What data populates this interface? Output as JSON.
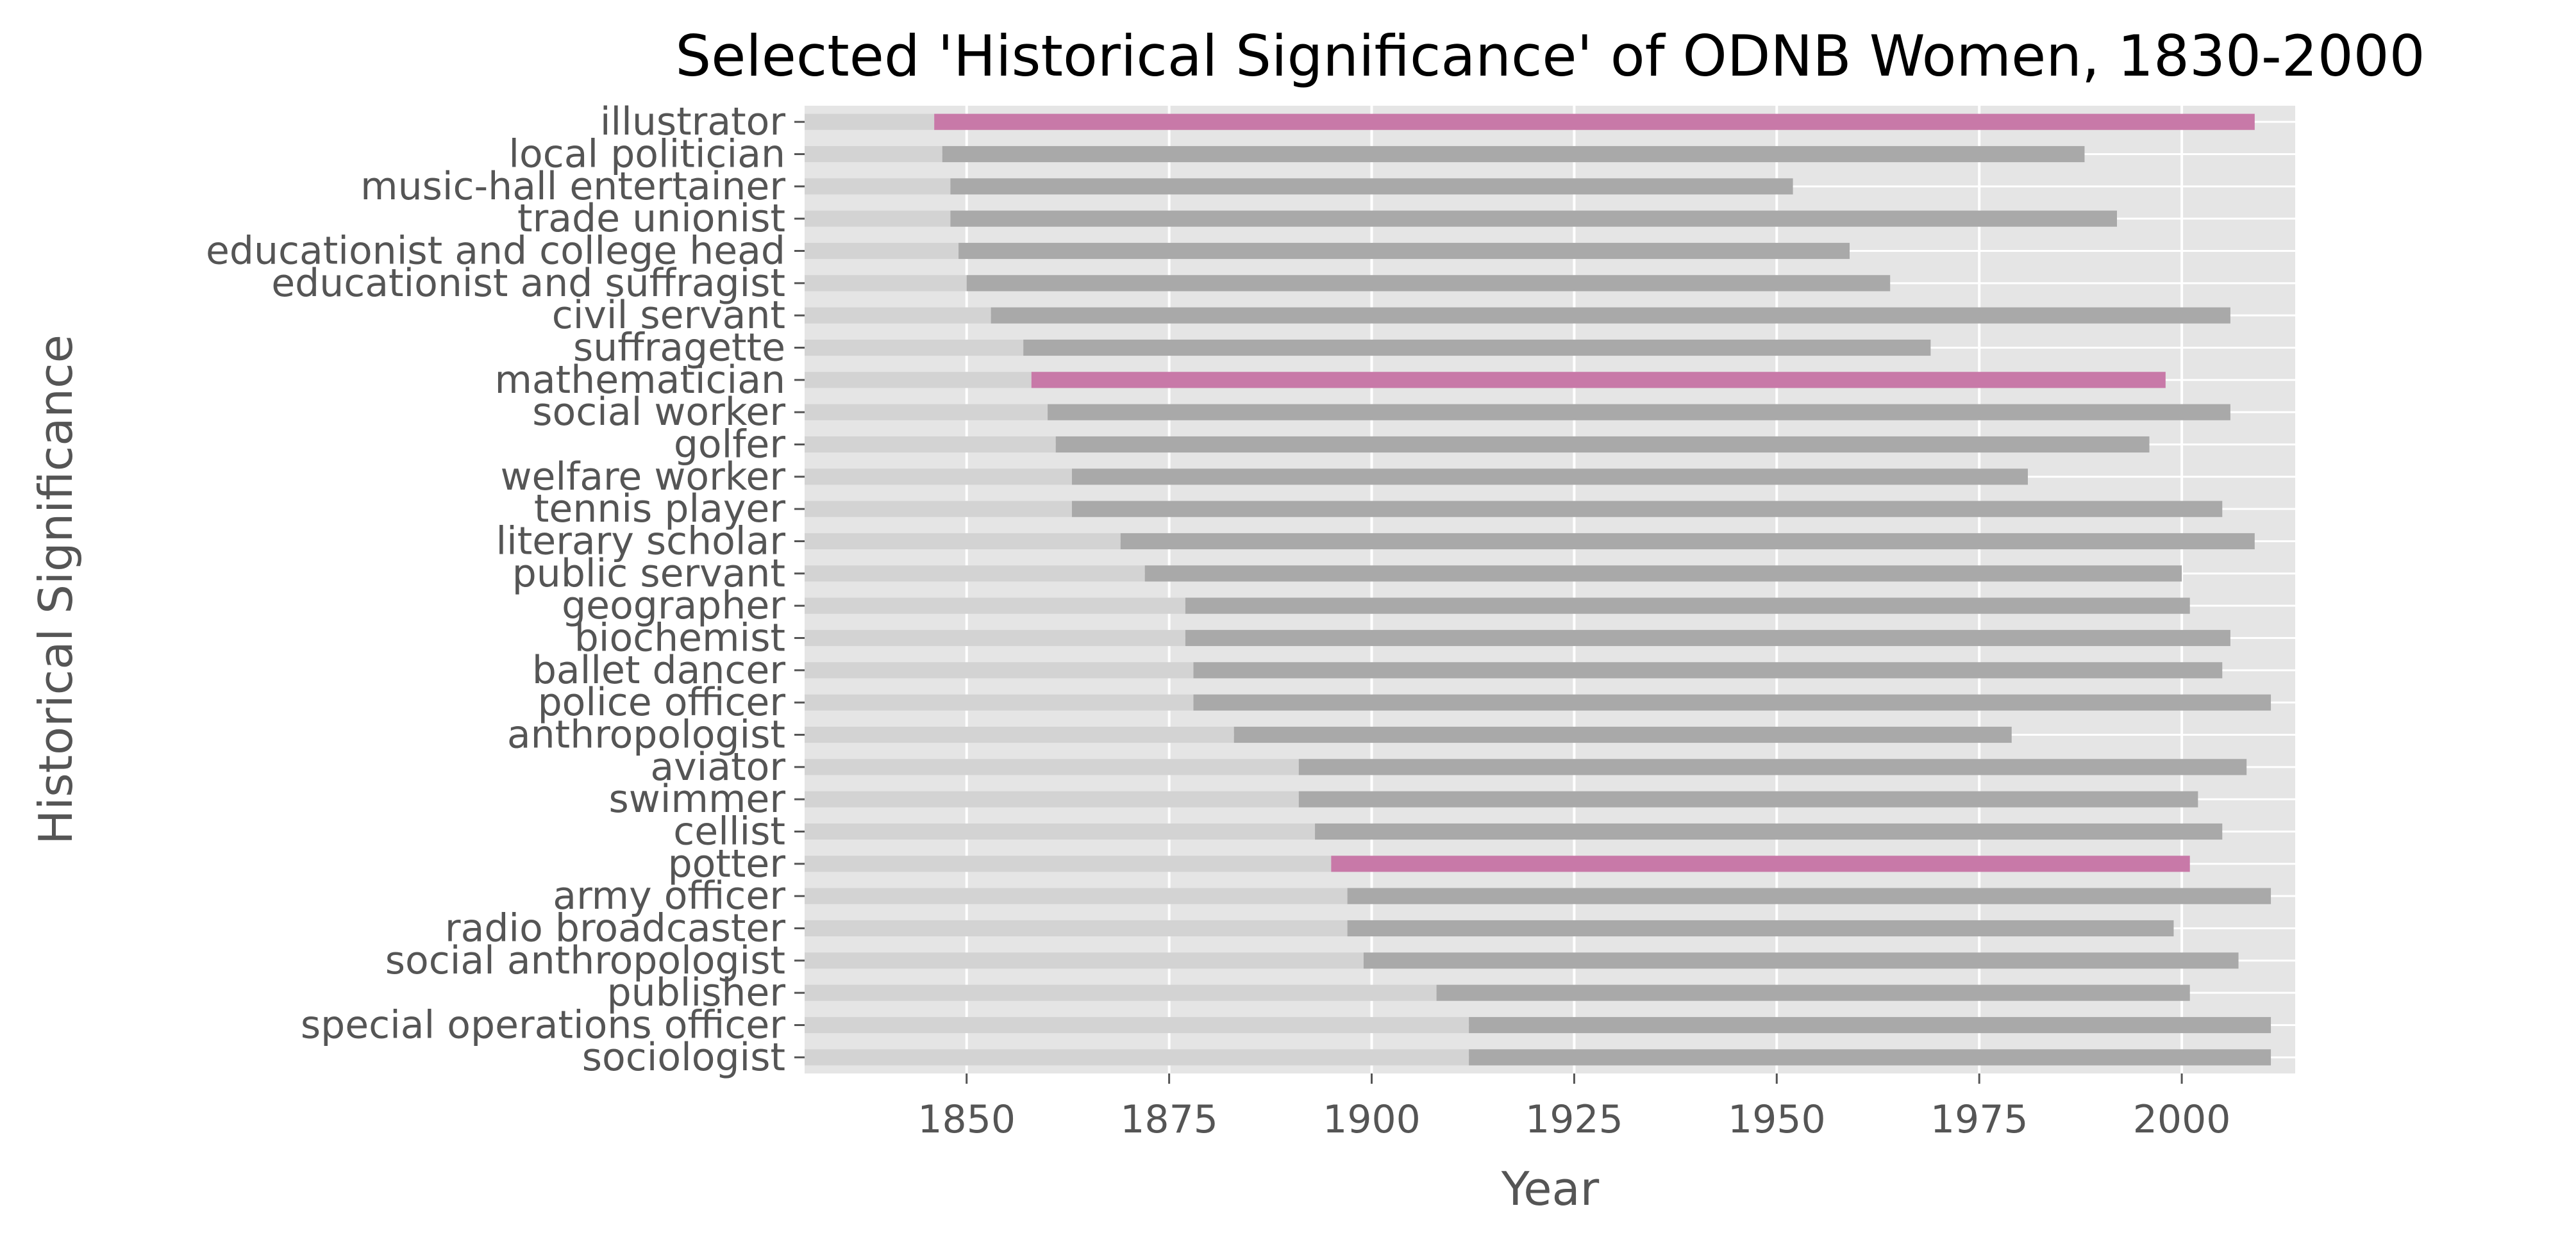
{
  "chart_data": {
    "type": "bar",
    "orientation": "horizontal-range",
    "title": "Selected 'Historical Significance' of ODNB Women, 1830-2000",
    "xlabel": "Year",
    "ylabel": "Historical Significance",
    "xlim": [
      1830,
      2014
    ],
    "xticks": [
      1850,
      1875,
      1900,
      1925,
      1950,
      1975,
      2000
    ],
    "grid": true,
    "legend": "none",
    "colors": {
      "plot_background": "#e5e5e5",
      "grid": "#ffffff",
      "base_bar": "#d3d3d3",
      "range_bar": "#a9a9a9",
      "highlight_bar": "#c879a8",
      "tick_text": "#555555",
      "title_text": "#000000"
    },
    "categories": [
      "illustrator",
      "local politician",
      "music-hall entertainer",
      "trade unionist",
      "educationist and college head",
      "educationist and suffragist",
      "civil servant",
      "suffragette",
      "mathematician",
      "social worker",
      "golfer",
      "welfare worker",
      "tennis player",
      "literary scholar",
      "public servant",
      "geographer",
      "biochemist",
      "ballet dancer",
      "police officer",
      "anthropologist",
      "aviator",
      "swimmer",
      "cellist",
      "potter",
      "army officer",
      "radio broadcaster",
      "social anthropologist",
      "publisher",
      "special operations officer",
      "sociologist"
    ],
    "start": [
      1846,
      1847,
      1848,
      1848,
      1849,
      1850,
      1853,
      1857,
      1858,
      1860,
      1861,
      1863,
      1863,
      1869,
      1872,
      1877,
      1877,
      1878,
      1878,
      1883,
      1891,
      1891,
      1893,
      1895,
      1897,
      1897,
      1899,
      1908,
      1912,
      1912
    ],
    "end": [
      2009,
      1988,
      1952,
      1992,
      1959,
      1964,
      2006,
      1969,
      1998,
      2006,
      1996,
      1981,
      2005,
      2009,
      2000,
      2001,
      2006,
      2005,
      2011,
      1979,
      2008,
      2002,
      2005,
      2001,
      2011,
      1999,
      2007,
      2001,
      2011,
      2011
    ],
    "highlighted": [
      "illustrator",
      "mathematician",
      "potter"
    ]
  }
}
